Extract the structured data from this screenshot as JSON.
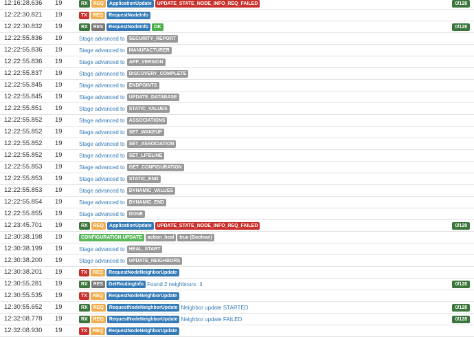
{
  "colors": {
    "rx": "#3c763d",
    "tx": "#c9302c",
    "req": "#f0ad4e",
    "res": "#777777",
    "function": "#337ab7",
    "error": "#c9302c",
    "ok": "#4cae4c",
    "stage": "#999999",
    "link": "#337ab7"
  },
  "rows": [
    {
      "time": "12:16:28.636",
      "node": "19",
      "type": "msg",
      "dir": "RX",
      "kind": "REQ",
      "fn": "ApplicationUpdate",
      "status": "UPDATE_STATE_NODE_INFO_REQ_FAILED",
      "status_type": "error",
      "count": "0/128"
    },
    {
      "time": "12:22:30.821",
      "node": "19",
      "type": "msg",
      "dir": "TX",
      "kind": "REQ",
      "fn": "RequestNodeInfo"
    },
    {
      "time": "12:22:30.832",
      "node": "19",
      "type": "msg",
      "dir": "RX",
      "kind": "RES",
      "fn": "RequestNodeInfo",
      "status": "OK",
      "status_type": "ok",
      "count": "0/128"
    },
    {
      "time": "12:22:55.836",
      "node": "19",
      "type": "stage",
      "stage_text": "Stage advanced to",
      "stage": "SECURITY_REPORT"
    },
    {
      "time": "12:22:55.836",
      "node": "19",
      "type": "stage",
      "stage_text": "Stage advanced to",
      "stage": "MANUFACTURER"
    },
    {
      "time": "12:22:55.836",
      "node": "19",
      "type": "stage",
      "stage_text": "Stage advanced to",
      "stage": "APP_VERSION"
    },
    {
      "time": "12:22:55.837",
      "node": "19",
      "type": "stage",
      "stage_text": "Stage advanced to",
      "stage": "DISCOVERY_COMPLETE"
    },
    {
      "time": "12:22:55.845",
      "node": "19",
      "type": "stage",
      "stage_text": "Stage advanced to",
      "stage": "ENDPOINTS"
    },
    {
      "time": "12:22:55.845",
      "node": "19",
      "type": "stage",
      "stage_text": "Stage advanced to",
      "stage": "UPDATE_DATABASE"
    },
    {
      "time": "12:22:55.851",
      "node": "19",
      "type": "stage",
      "stage_text": "Stage advanced to",
      "stage": "STATIC_VALUES"
    },
    {
      "time": "12:22:55.852",
      "node": "19",
      "type": "stage",
      "stage_text": "Stage advanced to",
      "stage": "ASSOCIATIONS"
    },
    {
      "time": "12:22:55.852",
      "node": "19",
      "type": "stage",
      "stage_text": "Stage advanced to",
      "stage": "SET_WAKEUP"
    },
    {
      "time": "12:22:55.852",
      "node": "19",
      "type": "stage",
      "stage_text": "Stage advanced to",
      "stage": "SET_ASSOCIATION"
    },
    {
      "time": "12:22:55.852",
      "node": "19",
      "type": "stage",
      "stage_text": "Stage advanced to",
      "stage": "SET_LIFELINE"
    },
    {
      "time": "12:22:55.853",
      "node": "19",
      "type": "stage",
      "stage_text": "Stage advanced to",
      "stage": "GET_CONFIGURATION"
    },
    {
      "time": "12:22:55.853",
      "node": "19",
      "type": "stage",
      "stage_text": "Stage advanced to",
      "stage": "STATIC_END"
    },
    {
      "time": "12:22:55.853",
      "node": "19",
      "type": "stage",
      "stage_text": "Stage advanced to",
      "stage": "DYNAMIC_VALUES"
    },
    {
      "time": "12:22:55.854",
      "node": "19",
      "type": "stage",
      "stage_text": "Stage advanced to",
      "stage": "DYNAMIC_END"
    },
    {
      "time": "12:22:55.855",
      "node": "19",
      "type": "stage",
      "stage_text": "Stage advanced to",
      "stage": "DONE"
    },
    {
      "time": "12:23:45.701",
      "node": "19",
      "type": "msg",
      "dir": "RX",
      "kind": "REQ",
      "fn": "ApplicationUpdate",
      "status": "UPDATE_STATE_NODE_INFO_REQ_FAILED",
      "status_type": "error",
      "count": "0/128"
    },
    {
      "time": "12:30:38.198",
      "node": "19",
      "type": "config",
      "label": "CONFIGURATION UPDATE",
      "param": "action_heal",
      "value": "true (Boolean)"
    },
    {
      "time": "12:30:38.199",
      "node": "19",
      "type": "stage",
      "stage_text": "Stage advanced to",
      "stage": "HEAL_START"
    },
    {
      "time": "12:30:38.200",
      "node": "19",
      "type": "stage",
      "stage_text": "Stage advanced to",
      "stage": "UPDATE_NEIGHBORS"
    },
    {
      "time": "12:30:38.201",
      "node": "19",
      "type": "msg",
      "dir": "TX",
      "kind": "REQ",
      "fn": "RequestNodeNeighborUpdate"
    },
    {
      "time": "12:30:55.281",
      "node": "19",
      "type": "msg",
      "dir": "RX",
      "kind": "RES",
      "fn": "GetRoutingInfo",
      "text": "Found 2 neighbours",
      "chevron": "⇕",
      "count": "0/128"
    },
    {
      "time": "12:30:55.535",
      "node": "19",
      "type": "msg",
      "dir": "TX",
      "kind": "REQ",
      "fn": "RequestNodeNeighborUpdate"
    },
    {
      "time": "12:30:55.652",
      "node": "19",
      "type": "msg",
      "dir": "RX",
      "kind": "REQ",
      "fn": "RequestNodeNeighborUpdate",
      "text": "Neighbor update STARTED",
      "count": "0/128"
    },
    {
      "time": "12:32:08.778",
      "node": "19",
      "type": "msg",
      "dir": "RX",
      "kind": "REQ",
      "fn": "RequestNodeNeighborUpdate",
      "text": "Neighbor update FAILED",
      "count": "0/128"
    },
    {
      "time": "12:32:08.930",
      "node": "19",
      "type": "msg",
      "dir": "TX",
      "kind": "REQ",
      "fn": "RequestNodeNeighborUpdate"
    }
  ]
}
